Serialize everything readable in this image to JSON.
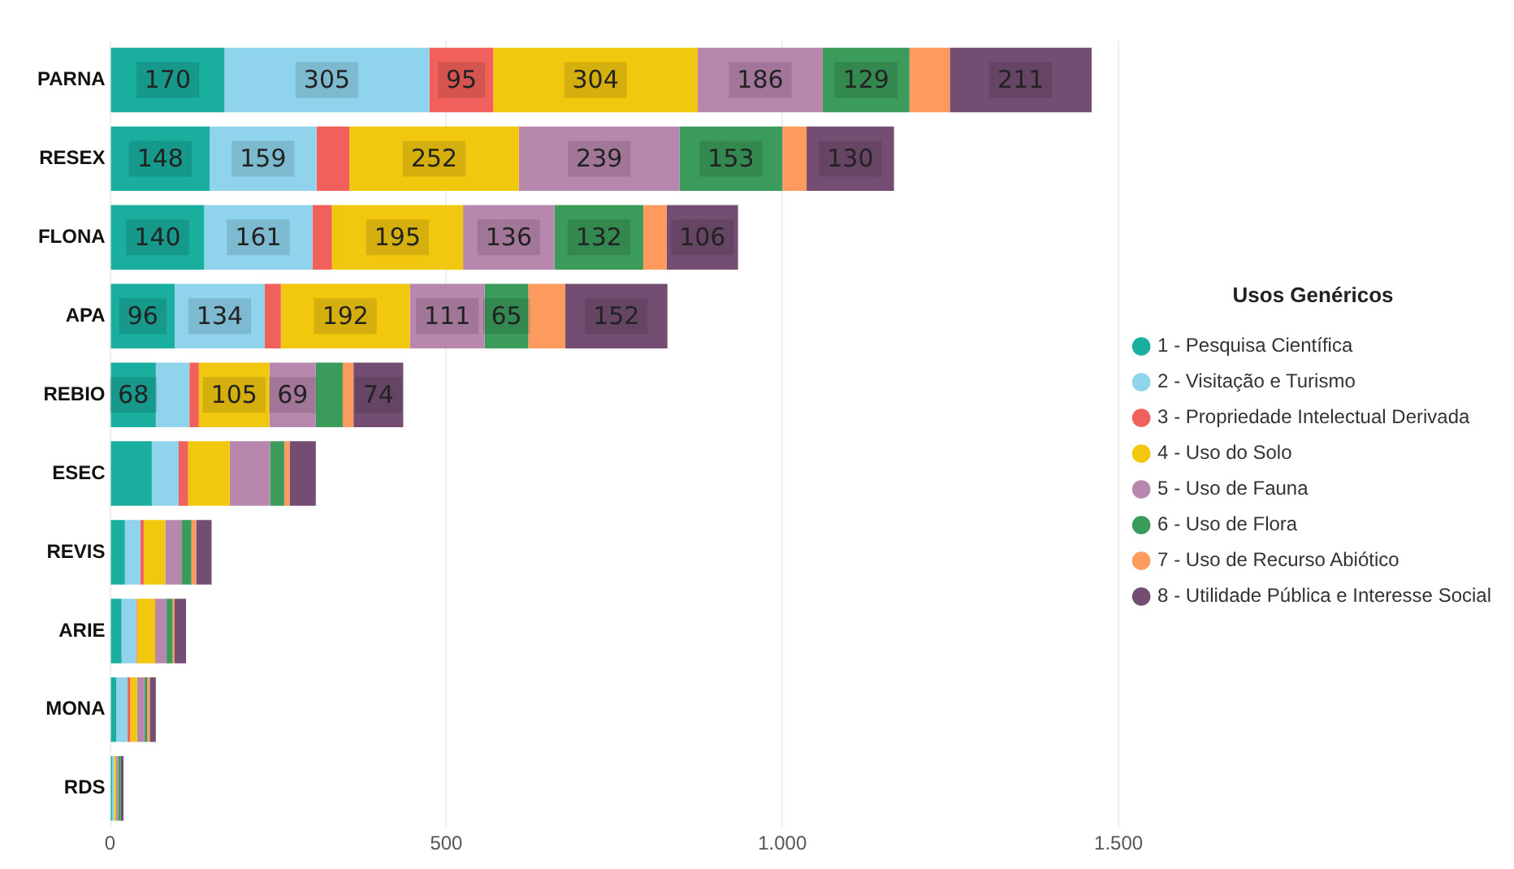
{
  "chart_data": {
    "type": "bar",
    "orientation": "horizontal",
    "stacked": true,
    "legend_title": "Usos Genéricos",
    "legend": "right",
    "grid": "x",
    "categories": [
      "PARNA",
      "RESEX",
      "FLONA",
      "APA",
      "REBIO",
      "ESEC",
      "REVIS",
      "ARIE",
      "MONA",
      "RDS"
    ],
    "xlim": [
      0,
      1500
    ],
    "xticks": [
      0,
      500,
      {
        "value": 1000,
        "label": "1.000"
      },
      {
        "value": 1500,
        "label": "1.500"
      }
    ],
    "series": [
      {
        "name": "1 - Pesquisa Científica",
        "color": "#1aae9f",
        "values": [
          170,
          148,
          140,
          96,
          68,
          62,
          22,
          17,
          9,
          3
        ],
        "value_labels": [
          "170",
          "148",
          "140",
          "96",
          "68",
          null,
          null,
          null,
          null,
          null
        ]
      },
      {
        "name": "2 - Visitação e Turismo",
        "color": "#8fd3ec",
        "values": [
          305,
          159,
          161,
          134,
          50,
          40,
          23,
          22,
          17,
          3
        ],
        "value_labels": [
          "305",
          "159",
          "161",
          "134",
          null,
          null,
          null,
          null,
          null,
          null
        ]
      },
      {
        "name": "3 - Propriedade Intelectual Derivada",
        "color": "#f2605c",
        "values": [
          95,
          49,
          29,
          24,
          14,
          14,
          5,
          1,
          4,
          null
        ],
        "value_labels": [
          "95",
          null,
          null,
          null,
          null,
          null,
          null,
          null,
          null,
          null
        ]
      },
      {
        "name": "4 - Uso do Solo",
        "color": "#f2c80f",
        "values": [
          304,
          252,
          195,
          192,
          105,
          62,
          32,
          27,
          10,
          3
        ],
        "value_labels": [
          "304",
          "252",
          "195",
          "192",
          "105",
          null,
          null,
          null,
          null,
          null
        ]
      },
      {
        "name": "5 - Uso de Fauna",
        "color": "#b887ad",
        "values": [
          186,
          239,
          136,
          111,
          69,
          60,
          24,
          17,
          11,
          3
        ],
        "value_labels": [
          "186",
          "239",
          "136",
          "111",
          "69",
          null,
          null,
          null,
          null,
          null
        ]
      },
      {
        "name": "6 - Uso de Flora",
        "color": "#3a9b5b",
        "values": [
          129,
          153,
          132,
          65,
          40,
          21,
          15,
          9,
          4,
          4
        ],
        "value_labels": [
          "129",
          "153",
          "132",
          "65",
          null,
          null,
          null,
          null,
          null,
          null
        ]
      },
      {
        "name": "7 - Uso de Recurso Abiótico",
        "color": "#fd9a5e",
        "values": [
          60,
          36,
          35,
          55,
          16,
          8,
          7,
          3,
          4,
          null
        ],
        "value_labels": [
          null,
          null,
          null,
          null,
          null,
          null,
          null,
          null,
          null,
          null
        ]
      },
      {
        "name": "8 - Utilidade Pública e Interesse Social",
        "color": "#744e72",
        "values": [
          211,
          130,
          106,
          152,
          74,
          39,
          23,
          17,
          9,
          4
        ],
        "value_labels": [
          "211",
          "130",
          "106",
          "152",
          "74",
          null,
          null,
          null,
          null,
          null
        ]
      }
    ]
  }
}
